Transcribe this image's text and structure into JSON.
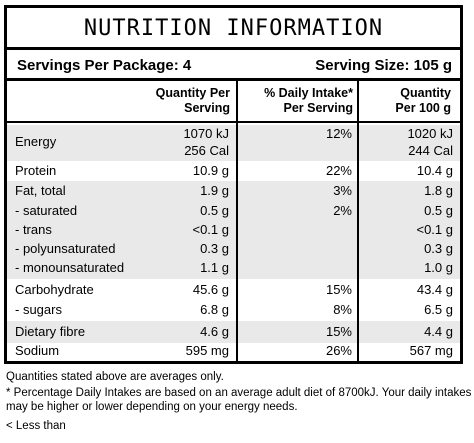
{
  "title": "NUTRITION INFORMATION",
  "servings_per_package": "Servings Per Package: 4",
  "serving_size": "Serving Size: 105 g",
  "headers": {
    "col1_line1": "Quantity Per",
    "col1_line2": "Serving",
    "col2_line1": "% Daily Intake*",
    "col2_line2": "Per Serving",
    "col3_line1": "Quantity",
    "col3_line2": "Per 100 g"
  },
  "rows": [
    {
      "name": "Energy",
      "per_serving": "1070 kJ",
      "per_serving_2": "256 Cal",
      "daily": "12%",
      "per_100g": "1020 kJ",
      "per_100g_2": "244 Cal"
    },
    {
      "name": "Protein",
      "per_serving": "10.9 g",
      "daily": "22%",
      "per_100g": "10.4 g"
    },
    {
      "name": "Fat, total",
      "per_serving": "1.9 g",
      "daily": "3%",
      "per_100g": "1.8 g"
    },
    {
      "name": "- saturated",
      "per_serving": "0.5 g",
      "daily": "2%",
      "per_100g": "0.5 g"
    },
    {
      "name": "- trans",
      "per_serving": "<0.1 g",
      "daily": "",
      "per_100g": "<0.1 g"
    },
    {
      "name": "- polyunsaturated",
      "per_serving": "0.3 g",
      "daily": "",
      "per_100g": "0.3 g"
    },
    {
      "name": "- monounsaturated",
      "per_serving": "1.1 g",
      "daily": "",
      "per_100g": "1.0 g"
    },
    {
      "name": "Carbohydrate",
      "per_serving": "45.6 g",
      "daily": "15%",
      "per_100g": "43.4 g"
    },
    {
      "name": "- sugars",
      "per_serving": "6.8 g",
      "daily": "8%",
      "per_100g": "6.5 g"
    },
    {
      "name": "Dietary fibre",
      "per_serving": "4.6 g",
      "daily": "15%",
      "per_100g": "4.4 g"
    },
    {
      "name": "Sodium",
      "per_serving": "595 mg",
      "daily": "26%",
      "per_100g": "567 mg"
    }
  ],
  "footnotes": {
    "averages": "Quantities stated above are averages only.",
    "daily_intake_1": "* Percentage Daily Intakes are based on an average adult diet of 8700kJ. Your daily intakes",
    "daily_intake_2": "may be higher or lower depending on your energy needs.",
    "less_than": "< Less than"
  }
}
